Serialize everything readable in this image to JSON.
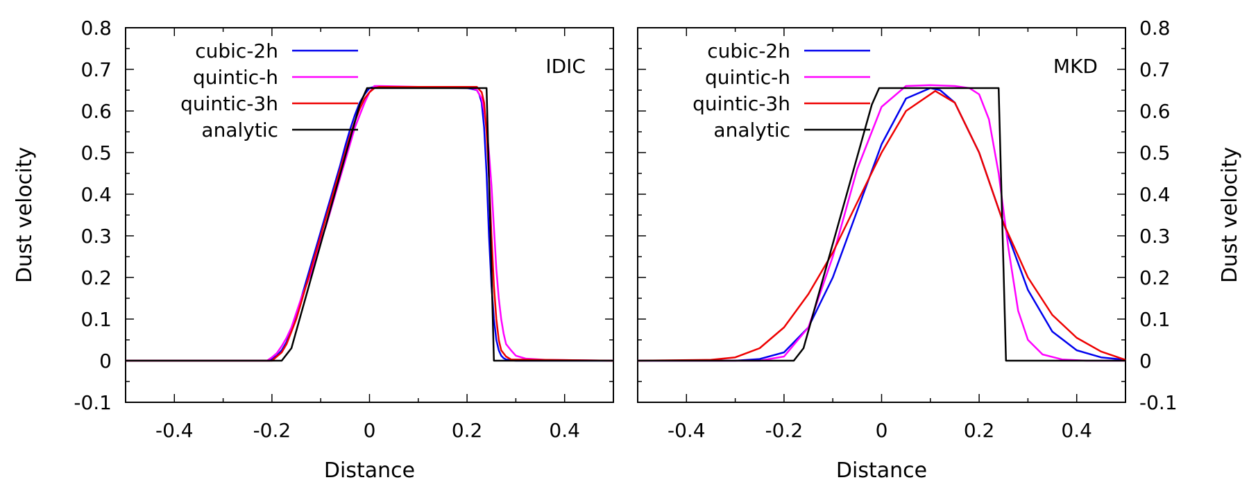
{
  "chart_data": [
    {
      "type": "line",
      "id": "left",
      "label": "IDIC",
      "xlabel": "Distance",
      "ylabel": "Dust velocity",
      "xlim": [
        -0.5,
        0.5
      ],
      "ylim": [
        -0.1,
        0.8
      ],
      "xticks": [
        -0.4,
        -0.2,
        0,
        0.2,
        0.4
      ],
      "xtick_labels": [
        "-0.4",
        "-0.2",
        "0",
        "0.2",
        "0.4"
      ],
      "yticks": [
        -0.1,
        0,
        0.1,
        0.2,
        0.3,
        0.4,
        0.5,
        0.6,
        0.7,
        0.8
      ],
      "ytick_labels": [
        "-0.1",
        "0",
        "0.1",
        "0.2",
        "0.3",
        "0.4",
        "0.5",
        "0.6",
        "0.7",
        "0.8"
      ],
      "legend_position": "top-left",
      "series": [
        {
          "name": "cubic-2h",
          "color": "#0000ee",
          "x": [
            -0.5,
            -0.205,
            -0.2,
            -0.19,
            -0.18,
            -0.17,
            -0.16,
            -0.15,
            -0.14,
            -0.13,
            -0.12,
            -0.11,
            -0.1,
            -0.09,
            -0.08,
            -0.07,
            -0.06,
            -0.05,
            -0.04,
            -0.03,
            -0.02,
            -0.01,
            0.0,
            0.01,
            0.02,
            0.2,
            0.21,
            0.22,
            0.225,
            0.23,
            0.235,
            0.24,
            0.245,
            0.25,
            0.255,
            0.26,
            0.265,
            0.27,
            0.275,
            0.28,
            0.29,
            0.3,
            0.5
          ],
          "y": [
            0,
            0,
            0.005,
            0.012,
            0.025,
            0.045,
            0.075,
            0.11,
            0.15,
            0.19,
            0.23,
            0.27,
            0.31,
            0.35,
            0.39,
            0.43,
            0.47,
            0.515,
            0.555,
            0.59,
            0.62,
            0.64,
            0.655,
            0.658,
            0.658,
            0.655,
            0.653,
            0.65,
            0.64,
            0.62,
            0.56,
            0.45,
            0.3,
            0.18,
            0.1,
            0.05,
            0.025,
            0.012,
            0.006,
            0.003,
            0.001,
            0,
            0
          ]
        },
        {
          "name": "quintic-h",
          "color": "#ff00ff",
          "x": [
            -0.5,
            -0.21,
            -0.2,
            -0.19,
            -0.18,
            -0.17,
            -0.16,
            -0.15,
            -0.14,
            -0.13,
            -0.12,
            -0.11,
            -0.1,
            -0.09,
            -0.08,
            -0.07,
            -0.06,
            -0.05,
            -0.04,
            -0.03,
            -0.02,
            -0.01,
            0.0,
            0.01,
            0.02,
            0.21,
            0.22,
            0.225,
            0.23,
            0.235,
            0.24,
            0.245,
            0.25,
            0.255,
            0.26,
            0.265,
            0.27,
            0.275,
            0.28,
            0.29,
            0.3,
            0.32,
            0.36,
            0.5
          ],
          "y": [
            0,
            0,
            0.008,
            0.018,
            0.035,
            0.055,
            0.08,
            0.115,
            0.15,
            0.18,
            0.21,
            0.25,
            0.29,
            0.32,
            0.36,
            0.4,
            0.44,
            0.48,
            0.52,
            0.56,
            0.59,
            0.62,
            0.645,
            0.66,
            0.66,
            0.655,
            0.65,
            0.64,
            0.63,
            0.6,
            0.56,
            0.5,
            0.42,
            0.32,
            0.22,
            0.15,
            0.1,
            0.065,
            0.04,
            0.025,
            0.012,
            0.005,
            0.002,
            0
          ]
        },
        {
          "name": "quintic-3h",
          "color": "#ee0000",
          "x": [
            -0.5,
            -0.2,
            -0.19,
            -0.18,
            -0.17,
            -0.16,
            -0.15,
            -0.14,
            -0.13,
            -0.12,
            -0.11,
            -0.1,
            -0.09,
            -0.08,
            -0.07,
            -0.06,
            -0.05,
            -0.04,
            -0.03,
            -0.02,
            -0.01,
            0.0,
            0.01,
            0.02,
            0.22,
            0.23,
            0.235,
            0.24,
            0.245,
            0.25,
            0.255,
            0.26,
            0.265,
            0.27,
            0.28,
            0.29,
            0.5
          ],
          "y": [
            0,
            0,
            0.01,
            0.02,
            0.04,
            0.07,
            0.1,
            0.14,
            0.18,
            0.22,
            0.26,
            0.3,
            0.34,
            0.38,
            0.42,
            0.46,
            0.5,
            0.54,
            0.575,
            0.605,
            0.63,
            0.645,
            0.655,
            0.658,
            0.658,
            0.645,
            0.62,
            0.55,
            0.44,
            0.3,
            0.18,
            0.1,
            0.05,
            0.025,
            0.01,
            0.003,
            0
          ]
        },
        {
          "name": "analytic",
          "color": "#000000",
          "x": [
            -0.5,
            -0.18,
            -0.16,
            -0.02,
            -0.005,
            0.24,
            0.255,
            0.5
          ],
          "y": [
            0,
            0,
            0.03,
            0.615,
            0.655,
            0.655,
            0,
            0
          ]
        }
      ]
    },
    {
      "type": "line",
      "id": "right",
      "label": "MKD",
      "xlabel": "Distance",
      "ylabel": "Dust velocity",
      "xlim": [
        -0.5,
        0.5
      ],
      "ylim": [
        -0.1,
        0.8
      ],
      "xticks": [
        -0.4,
        -0.2,
        0,
        0.2,
        0.4
      ],
      "xtick_labels": [
        "-0.4",
        "-0.2",
        "0",
        "0.2",
        "0.4"
      ],
      "yticks": [
        -0.1,
        0,
        0.1,
        0.2,
        0.3,
        0.4,
        0.5,
        0.6,
        0.7,
        0.8
      ],
      "ytick_labels": [
        "-0.1",
        "0",
        "0.1",
        "0.2",
        "0.3",
        "0.4",
        "0.5",
        "0.6",
        "0.7",
        "0.8"
      ],
      "legend_position": "top-left",
      "series": [
        {
          "name": "cubic-2h",
          "color": "#0000ee",
          "x": [
            -0.5,
            -0.3,
            -0.25,
            -0.2,
            -0.15,
            -0.1,
            -0.05,
            0.0,
            0.05,
            0.1,
            0.12,
            0.15,
            0.2,
            0.25,
            0.3,
            0.35,
            0.4,
            0.45,
            0.5
          ],
          "y": [
            0,
            0,
            0.004,
            0.02,
            0.08,
            0.2,
            0.36,
            0.52,
            0.63,
            0.655,
            0.65,
            0.62,
            0.5,
            0.33,
            0.17,
            0.07,
            0.025,
            0.008,
            0.002
          ]
        },
        {
          "name": "quintic-h",
          "color": "#ff00ff",
          "x": [
            -0.5,
            -0.25,
            -0.2,
            -0.15,
            -0.1,
            -0.05,
            0.0,
            0.05,
            0.1,
            0.15,
            0.18,
            0.2,
            0.22,
            0.24,
            0.26,
            0.28,
            0.3,
            0.33,
            0.37,
            0.42,
            0.5
          ],
          "y": [
            0,
            0,
            0.01,
            0.08,
            0.25,
            0.46,
            0.61,
            0.66,
            0.662,
            0.66,
            0.655,
            0.64,
            0.58,
            0.45,
            0.27,
            0.12,
            0.05,
            0.015,
            0.003,
            0,
            0
          ]
        },
        {
          "name": "quintic-3h",
          "color": "#ee0000",
          "x": [
            -0.5,
            -0.35,
            -0.3,
            -0.25,
            -0.2,
            -0.15,
            -0.1,
            -0.05,
            0.0,
            0.05,
            0.11,
            0.15,
            0.2,
            0.25,
            0.3,
            0.35,
            0.4,
            0.45,
            0.5
          ],
          "y": [
            0,
            0.002,
            0.008,
            0.03,
            0.08,
            0.16,
            0.26,
            0.38,
            0.5,
            0.6,
            0.648,
            0.62,
            0.5,
            0.33,
            0.2,
            0.11,
            0.055,
            0.022,
            0.002
          ]
        },
        {
          "name": "analytic",
          "color": "#000000",
          "x": [
            -0.5,
            -0.18,
            -0.16,
            -0.02,
            -0.005,
            0.24,
            0.255,
            0.5
          ],
          "y": [
            0,
            0,
            0.03,
            0.615,
            0.655,
            0.655,
            0,
            0
          ]
        }
      ]
    }
  ]
}
